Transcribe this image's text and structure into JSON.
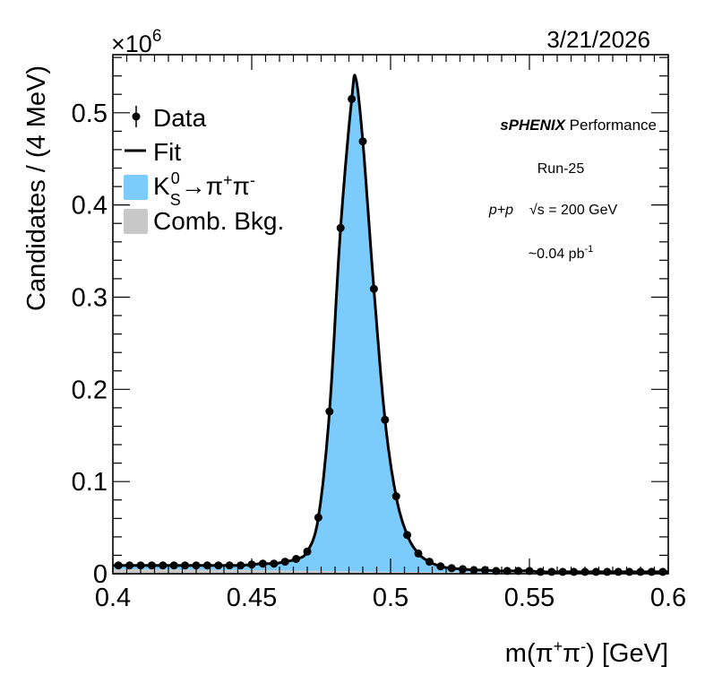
{
  "chart_data": {
    "type": "line",
    "title": "",
    "date": "3/21/2026",
    "xlabel": "m(π⁺π⁻) [GeV]",
    "xlabel_parts": {
      "base": "m(π",
      "sup1": "+",
      "mid": "π",
      "sup2": "-",
      "end": ") [GeV]"
    },
    "ylabel": "Candidates / (4 MeV)",
    "y_multiplier": {
      "base": "×10",
      "exp": "6"
    },
    "xlim": [
      0.4,
      0.6
    ],
    "ylim": [
      0,
      0.563
    ],
    "x_ticks": [
      0.4,
      0.45,
      0.5,
      0.55,
      0.6
    ],
    "x_tick_labels": [
      "0.4",
      "0.45",
      "0.5",
      "0.55",
      "0.6"
    ],
    "x_minor_step": 0.005,
    "y_ticks": [
      0,
      0.1,
      0.2,
      0.3,
      0.4,
      0.5
    ],
    "y_tick_labels": [
      "0",
      "0.1",
      "0.2",
      "0.3",
      "0.4",
      "0.5"
    ],
    "y_minor_step": 0.02,
    "bin_width": 0.004,
    "legend_position": "top-left",
    "legend": [
      {
        "key": "data",
        "label": "Data"
      },
      {
        "key": "fit",
        "label": "Fit"
      },
      {
        "key": "signal",
        "label_parts": {
          "k": "K",
          "sup": "0",
          "sub": "S",
          "arrow": "→π",
          "sup1": "+",
          "pi2": "π",
          "sup2": "-"
        }
      },
      {
        "key": "bkg",
        "label": "Comb. Bkg."
      }
    ],
    "annotations": {
      "experiment": "sPHENIX",
      "status": "Performance",
      "run": "Run-25",
      "system": "p+p",
      "energy": "√s = 200 GeV",
      "lumi_base": "~0.04 pb",
      "lumi_exp": "-1"
    },
    "colors": {
      "signal": "#7bcbfc",
      "background": "#c8c8c8",
      "fit": "#000000",
      "data": "#000000"
    },
    "series": [
      {
        "name": "Data",
        "x": [
          0.402,
          0.406,
          0.41,
          0.414,
          0.418,
          0.422,
          0.426,
          0.43,
          0.434,
          0.438,
          0.442,
          0.446,
          0.45,
          0.454,
          0.458,
          0.462,
          0.466,
          0.47,
          0.474,
          0.478,
          0.482,
          0.486,
          0.49,
          0.494,
          0.498,
          0.502,
          0.506,
          0.51,
          0.514,
          0.518,
          0.522,
          0.526,
          0.53,
          0.534,
          0.538,
          0.542,
          0.546,
          0.55,
          0.554,
          0.558,
          0.562,
          0.566,
          0.57,
          0.574,
          0.578,
          0.582,
          0.586,
          0.59,
          0.594,
          0.598
        ],
        "values": [
          0.009,
          0.009,
          0.009,
          0.009,
          0.009,
          0.009,
          0.009,
          0.009,
          0.009,
          0.009,
          0.009,
          0.009,
          0.01,
          0.011,
          0.011,
          0.013,
          0.016,
          0.024,
          0.061,
          0.176,
          0.375,
          0.515,
          0.469,
          0.309,
          0.167,
          0.084,
          0.042,
          0.022,
          0.013,
          0.008,
          0.006,
          0.005,
          0.004,
          0.004,
          0.003,
          0.003,
          0.003,
          0.003,
          0.002,
          0.002,
          0.002,
          0.002,
          0.002,
          0.002,
          0.002,
          0.002,
          0.002,
          0.002,
          0.002,
          0.002
        ]
      },
      {
        "name": "Comb. Bkg.",
        "x": [
          0.4,
          0.45,
          0.5,
          0.55,
          0.6
        ],
        "values": [
          0.005,
          0.004,
          0.002,
          0.0015,
          0.001
        ]
      }
    ],
    "fit_peak": {
      "x": 0.4875,
      "value": 0.537
    }
  }
}
